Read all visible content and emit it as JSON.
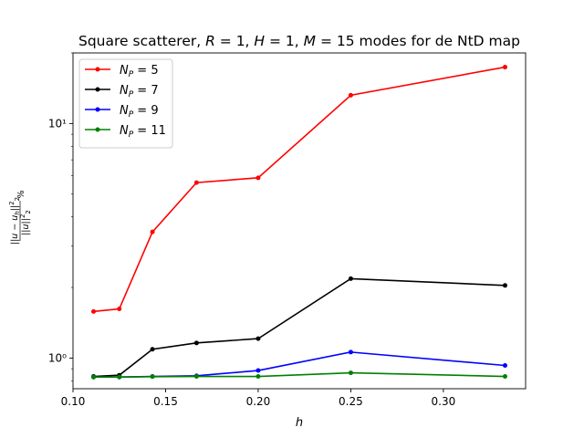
{
  "chart_data": {
    "type": "line",
    "title": "Square scatterer, R = 1, H = 1, M = 15 modes for de NtD map",
    "xlabel": "h",
    "ylabel": "||u − u_h||²₂ / ||u||²₂ %",
    "x_scale": "linear",
    "y_scale": "log",
    "xlim": [
      0.1,
      0.3444
    ],
    "ylim": [
      0.74,
      20
    ],
    "x_ticks": [
      {
        "value": 0.1,
        "label": "0.10"
      },
      {
        "value": 0.15,
        "label": "0.15"
      },
      {
        "value": 0.2,
        "label": "0.20"
      },
      {
        "value": 0.25,
        "label": "0.25"
      },
      {
        "value": 0.3,
        "label": "0.30"
      }
    ],
    "y_ticks": [
      {
        "value": 1,
        "label": "10⁰"
      },
      {
        "value": 10,
        "label": "10¹"
      }
    ],
    "legend_position": "top-left",
    "grid": false,
    "x": [
      0.1111,
      0.125,
      0.1429,
      0.1667,
      0.2,
      0.25,
      0.3333
    ],
    "series": [
      {
        "name": "N_P = 5",
        "label_main": "N",
        "label_sub": "P",
        "label_rest": " = 5",
        "color": "#ff0000",
        "values": [
          1.58,
          1.62,
          3.45,
          5.6,
          5.87,
          13.2,
          17.4
        ]
      },
      {
        "name": "N_P = 7",
        "label_main": "N",
        "label_sub": "P",
        "label_rest": " = 7",
        "color": "#000000",
        "values": [
          0.835,
          0.845,
          1.09,
          1.16,
          1.21,
          2.18,
          2.04
        ]
      },
      {
        "name": "N_P = 9",
        "label_main": "N",
        "label_sub": "P",
        "label_rest": " = 9",
        "color": "#0000ff",
        "values": [
          0.83,
          0.83,
          0.835,
          0.84,
          0.885,
          1.06,
          0.93
        ]
      },
      {
        "name": "N_P = 11",
        "label_main": "N",
        "label_sub": "P",
        "label_rest": " = 11",
        "color": "#008000",
        "values": [
          0.83,
          0.83,
          0.833,
          0.835,
          0.835,
          0.865,
          0.835
        ]
      }
    ]
  }
}
